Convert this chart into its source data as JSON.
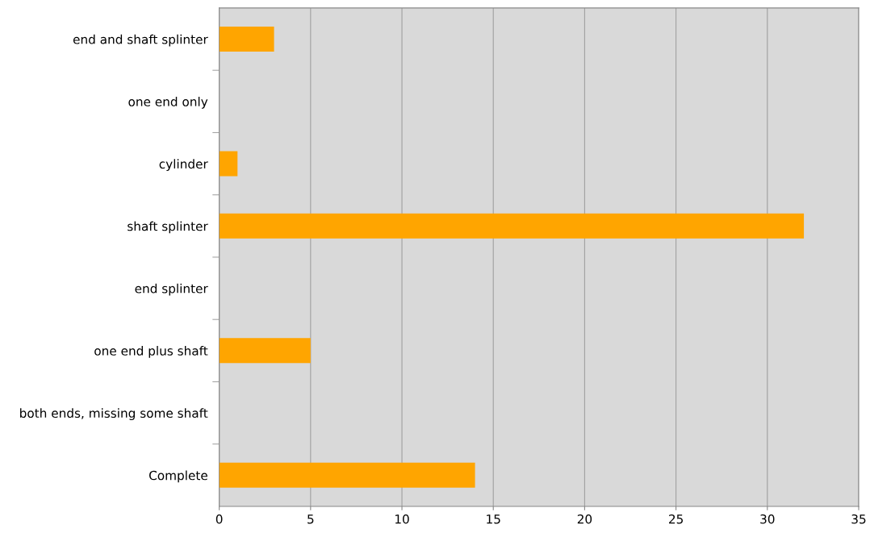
{
  "chart_data": {
    "type": "bar",
    "orientation": "horizontal",
    "categories": [
      "end and shaft splinter",
      "one end only",
      "cylinder",
      "shaft splinter",
      "end splinter",
      "one end plus shaft",
      "both ends, missing some shaft",
      "Complete"
    ],
    "values": [
      3,
      0,
      1,
      32,
      0,
      5,
      0,
      14
    ],
    "color": "#ffa500",
    "xlim": [
      0,
      35
    ],
    "xticks": [
      0,
      5,
      10,
      15,
      20,
      25,
      30,
      35
    ],
    "grid": "x",
    "legend": false
  }
}
